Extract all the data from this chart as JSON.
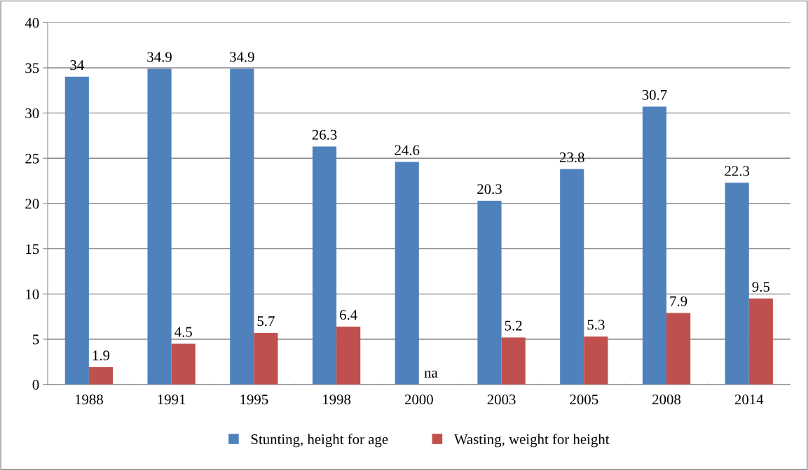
{
  "chart_data": {
    "type": "bar",
    "categories": [
      "1988",
      "1991",
      "1995",
      "1998",
      "2000",
      "2003",
      "2005",
      "2008",
      "2014"
    ],
    "series": [
      {
        "name": "Stunting, height for age",
        "color": "#4f81bd",
        "values": [
          34,
          34.9,
          34.9,
          26.3,
          24.6,
          20.3,
          23.8,
          30.7,
          22.3
        ],
        "value_labels": [
          "34",
          "34.9",
          "34.9",
          "26.3",
          "24.6",
          "20.3",
          "23.8",
          "30.7",
          "22.3"
        ]
      },
      {
        "name": "Wasting, weight for height",
        "color": "#c0504d",
        "values": [
          1.9,
          4.5,
          5.7,
          6.4,
          null,
          5.2,
          5.3,
          7.9,
          9.5
        ],
        "value_labels": [
          "1.9",
          "4.5",
          "5.7",
          "6.4",
          "na",
          "5.2",
          "5.3",
          "7.9",
          "9.5"
        ]
      }
    ],
    "ylim": [
      0,
      40
    ],
    "yticks": [
      0,
      5,
      10,
      15,
      20,
      25,
      30,
      35,
      40
    ],
    "grid": "y",
    "legend": "bottom"
  }
}
